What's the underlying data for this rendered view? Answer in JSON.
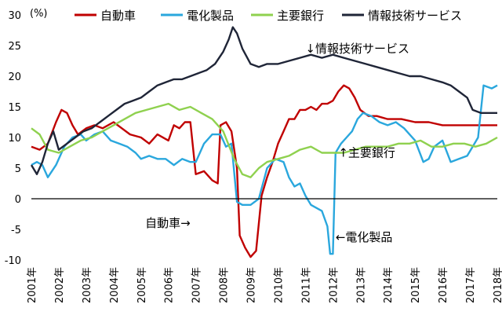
{
  "chart_data": {
    "type": "line",
    "ylabel": "(%)",
    "ylim": [
      -10,
      30
    ],
    "yticks": [
      -10,
      -5,
      0,
      5,
      10,
      15,
      20,
      25,
      30
    ],
    "xlim": [
      2001.0,
      2018.0
    ],
    "xtick_labels": [
      "2001年",
      "2002年",
      "2003年",
      "2004年",
      "2005年",
      "2006年",
      "2007年",
      "2008年",
      "2009年",
      "2010年",
      "2011年",
      "2012年",
      "2013年",
      "2014年",
      "2015年",
      "2016年",
      "2017年",
      "2018年"
    ],
    "legend_position": "top",
    "grid": false,
    "series": [
      {
        "name": "自動車",
        "color": "#c00000",
        "points": [
          [
            2001.0,
            8.5
          ],
          [
            2001.3,
            8.0
          ],
          [
            2001.6,
            9.0
          ],
          [
            2001.9,
            12.5
          ],
          [
            2002.1,
            14.5
          ],
          [
            2002.3,
            14.0
          ],
          [
            2002.5,
            12.0
          ],
          [
            2002.7,
            10.5
          ],
          [
            2003.0,
            11.5
          ],
          [
            2003.3,
            12.0
          ],
          [
            2003.6,
            11.5
          ],
          [
            2004.0,
            12.5
          ],
          [
            2004.3,
            11.5
          ],
          [
            2004.6,
            10.5
          ],
          [
            2005.0,
            10.0
          ],
          [
            2005.3,
            9.0
          ],
          [
            2005.6,
            10.5
          ],
          [
            2006.0,
            9.5
          ],
          [
            2006.2,
            12.0
          ],
          [
            2006.4,
            11.5
          ],
          [
            2006.6,
            12.5
          ],
          [
            2006.8,
            12.5
          ],
          [
            2007.0,
            4.0
          ],
          [
            2007.3,
            4.5
          ],
          [
            2007.6,
            3.0
          ],
          [
            2007.8,
            2.5
          ],
          [
            2007.9,
            12.0
          ],
          [
            2008.1,
            12.5
          ],
          [
            2008.3,
            11.0
          ],
          [
            2008.5,
            5.0
          ],
          [
            2008.6,
            -6.0
          ],
          [
            2008.8,
            -8.0
          ],
          [
            2009.0,
            -9.5
          ],
          [
            2009.2,
            -8.5
          ],
          [
            2009.4,
            0.5
          ],
          [
            2009.6,
            3.5
          ],
          [
            2009.8,
            6.0
          ],
          [
            2010.0,
            9.0
          ],
          [
            2010.2,
            11.0
          ],
          [
            2010.4,
            13.0
          ],
          [
            2010.6,
            13.0
          ],
          [
            2010.8,
            14.5
          ],
          [
            2011.0,
            14.5
          ],
          [
            2011.2,
            15.0
          ],
          [
            2011.4,
            14.5
          ],
          [
            2011.6,
            15.5
          ],
          [
            2011.8,
            15.5
          ],
          [
            2012.0,
            16.0
          ],
          [
            2012.2,
            17.5
          ],
          [
            2012.4,
            18.5
          ],
          [
            2012.6,
            18.0
          ],
          [
            2012.8,
            16.5
          ],
          [
            2013.0,
            14.5
          ],
          [
            2013.3,
            13.5
          ],
          [
            2013.6,
            13.5
          ],
          [
            2014.0,
            13.0
          ],
          [
            2014.5,
            13.0
          ],
          [
            2015.0,
            12.5
          ],
          [
            2015.5,
            12.5
          ],
          [
            2016.0,
            12.0
          ],
          [
            2016.5,
            12.0
          ],
          [
            2017.0,
            12.0
          ],
          [
            2017.5,
            12.0
          ],
          [
            2018.0,
            12.0
          ]
        ]
      },
      {
        "name": "電化製品",
        "color": "#2aa7dd",
        "points": [
          [
            2001.0,
            5.5
          ],
          [
            2001.2,
            6.0
          ],
          [
            2001.4,
            5.5
          ],
          [
            2001.6,
            3.5
          ],
          [
            2001.9,
            5.5
          ],
          [
            2002.2,
            8.5
          ],
          [
            2002.5,
            10.0
          ],
          [
            2002.8,
            10.5
          ],
          [
            2003.0,
            9.5
          ],
          [
            2003.3,
            10.5
          ],
          [
            2003.6,
            11.0
          ],
          [
            2003.9,
            9.5
          ],
          [
            2004.2,
            9.0
          ],
          [
            2004.5,
            8.5
          ],
          [
            2004.8,
            7.5
          ],
          [
            2005.0,
            6.5
          ],
          [
            2005.3,
            7.0
          ],
          [
            2005.6,
            6.5
          ],
          [
            2005.9,
            6.5
          ],
          [
            2006.2,
            5.5
          ],
          [
            2006.5,
            6.5
          ],
          [
            2006.8,
            6.0
          ],
          [
            2007.0,
            6.0
          ],
          [
            2007.3,
            9.0
          ],
          [
            2007.6,
            10.5
          ],
          [
            2007.9,
            10.5
          ],
          [
            2008.1,
            8.5
          ],
          [
            2008.3,
            9.0
          ],
          [
            2008.5,
            -0.5
          ],
          [
            2008.7,
            -1.0
          ],
          [
            2009.0,
            -1.0
          ],
          [
            2009.3,
            0.0
          ],
          [
            2009.6,
            5.0
          ],
          [
            2009.9,
            6.5
          ],
          [
            2010.2,
            6.0
          ],
          [
            2010.4,
            3.5
          ],
          [
            2010.6,
            2.0
          ],
          [
            2010.8,
            2.5
          ],
          [
            2011.0,
            0.5
          ],
          [
            2011.2,
            -1.0
          ],
          [
            2011.4,
            -1.5
          ],
          [
            2011.6,
            -2.0
          ],
          [
            2011.8,
            -4.5
          ],
          [
            2011.9,
            -9.0
          ],
          [
            2012.0,
            -9.0
          ],
          [
            2012.1,
            7.5
          ],
          [
            2012.3,
            9.0
          ],
          [
            2012.5,
            10.0
          ],
          [
            2012.7,
            11.0
          ],
          [
            2012.9,
            13.0
          ],
          [
            2013.1,
            14.0
          ],
          [
            2013.4,
            13.5
          ],
          [
            2013.7,
            12.5
          ],
          [
            2014.0,
            12.0
          ],
          [
            2014.3,
            12.5
          ],
          [
            2014.6,
            11.5
          ],
          [
            2015.0,
            9.5
          ],
          [
            2015.3,
            6.0
          ],
          [
            2015.5,
            6.5
          ],
          [
            2015.7,
            8.5
          ],
          [
            2016.0,
            9.5
          ],
          [
            2016.3,
            6.0
          ],
          [
            2016.6,
            6.5
          ],
          [
            2016.9,
            7.0
          ],
          [
            2017.1,
            8.5
          ],
          [
            2017.3,
            10.0
          ],
          [
            2017.5,
            18.5
          ],
          [
            2017.8,
            18.0
          ],
          [
            2018.0,
            18.5
          ]
        ]
      },
      {
        "name": "主要銀行",
        "color": "#8fd14f",
        "points": [
          [
            2001.0,
            11.5
          ],
          [
            2001.3,
            10.5
          ],
          [
            2001.6,
            8.0
          ],
          [
            2002.0,
            7.5
          ],
          [
            2002.4,
            8.5
          ],
          [
            2002.8,
            9.5
          ],
          [
            2003.2,
            10.0
          ],
          [
            2003.6,
            11.0
          ],
          [
            2004.0,
            12.0
          ],
          [
            2004.4,
            13.0
          ],
          [
            2004.8,
            14.0
          ],
          [
            2005.2,
            14.5
          ],
          [
            2005.6,
            15.0
          ],
          [
            2006.0,
            15.5
          ],
          [
            2006.4,
            14.5
          ],
          [
            2006.8,
            15.0
          ],
          [
            2007.2,
            14.0
          ],
          [
            2007.6,
            13.0
          ],
          [
            2008.0,
            11.0
          ],
          [
            2008.4,
            6.5
          ],
          [
            2008.7,
            4.0
          ],
          [
            2009.0,
            3.5
          ],
          [
            2009.3,
            5.0
          ],
          [
            2009.6,
            6.0
          ],
          [
            2010.0,
            6.5
          ],
          [
            2010.4,
            7.0
          ],
          [
            2010.8,
            8.0
          ],
          [
            2011.2,
            8.5
          ],
          [
            2011.6,
            7.5
          ],
          [
            2012.0,
            7.5
          ],
          [
            2012.4,
            7.5
          ],
          [
            2012.8,
            8.0
          ],
          [
            2013.2,
            8.5
          ],
          [
            2013.6,
            8.5
          ],
          [
            2014.0,
            8.5
          ],
          [
            2014.4,
            9.0
          ],
          [
            2014.8,
            9.0
          ],
          [
            2015.2,
            9.5
          ],
          [
            2015.6,
            8.5
          ],
          [
            2016.0,
            8.5
          ],
          [
            2016.4,
            9.0
          ],
          [
            2016.8,
            9.0
          ],
          [
            2017.2,
            8.5
          ],
          [
            2017.6,
            9.0
          ],
          [
            2018.0,
            10.0
          ]
        ]
      },
      {
        "name": "情報技術サービス",
        "color": "#1f2537",
        "points": [
          [
            2001.0,
            5.5
          ],
          [
            2001.2,
            4.0
          ],
          [
            2001.4,
            6.0
          ],
          [
            2001.6,
            9.0
          ],
          [
            2001.8,
            11.0
          ],
          [
            2002.0,
            8.0
          ],
          [
            2002.3,
            9.0
          ],
          [
            2002.6,
            10.0
          ],
          [
            2002.9,
            11.0
          ],
          [
            2003.2,
            11.5
          ],
          [
            2003.5,
            12.5
          ],
          [
            2003.8,
            13.5
          ],
          [
            2004.1,
            14.5
          ],
          [
            2004.4,
            15.5
          ],
          [
            2004.7,
            16.0
          ],
          [
            2005.0,
            16.5
          ],
          [
            2005.3,
            17.5
          ],
          [
            2005.6,
            18.5
          ],
          [
            2005.9,
            19.0
          ],
          [
            2006.2,
            19.5
          ],
          [
            2006.5,
            19.5
          ],
          [
            2006.8,
            20.0
          ],
          [
            2007.1,
            20.5
          ],
          [
            2007.4,
            21.0
          ],
          [
            2007.7,
            22.0
          ],
          [
            2008.0,
            24.0
          ],
          [
            2008.2,
            26.0
          ],
          [
            2008.35,
            28.0
          ],
          [
            2008.5,
            27.0
          ],
          [
            2008.7,
            24.5
          ],
          [
            2009.0,
            22.0
          ],
          [
            2009.3,
            21.5
          ],
          [
            2009.6,
            22.0
          ],
          [
            2010.0,
            22.0
          ],
          [
            2010.4,
            22.5
          ],
          [
            2010.8,
            23.0
          ],
          [
            2011.2,
            23.5
          ],
          [
            2011.6,
            23.0
          ],
          [
            2012.0,
            23.5
          ],
          [
            2012.4,
            23.0
          ],
          [
            2012.8,
            22.5
          ],
          [
            2013.2,
            22.0
          ],
          [
            2013.6,
            21.5
          ],
          [
            2014.0,
            21.0
          ],
          [
            2014.4,
            20.5
          ],
          [
            2014.8,
            20.0
          ],
          [
            2015.2,
            20.0
          ],
          [
            2015.6,
            19.5
          ],
          [
            2016.0,
            19.0
          ],
          [
            2016.3,
            18.5
          ],
          [
            2016.6,
            17.5
          ],
          [
            2016.9,
            16.5
          ],
          [
            2017.1,
            14.5
          ],
          [
            2017.4,
            14.0
          ],
          [
            2017.7,
            14.0
          ],
          [
            2018.0,
            14.0
          ]
        ]
      }
    ],
    "annotations": [
      {
        "text": "↓情報技術サービス",
        "x": 2011.0,
        "y": 24.5
      },
      {
        "text": "↑主要銀行",
        "x": 2012.2,
        "y": 7.5
      },
      {
        "text": "自動車→",
        "x": 2006.8,
        "y": -4.0
      },
      {
        "text": "←電化製品",
        "x": 2012.1,
        "y": -6.3
      }
    ]
  }
}
